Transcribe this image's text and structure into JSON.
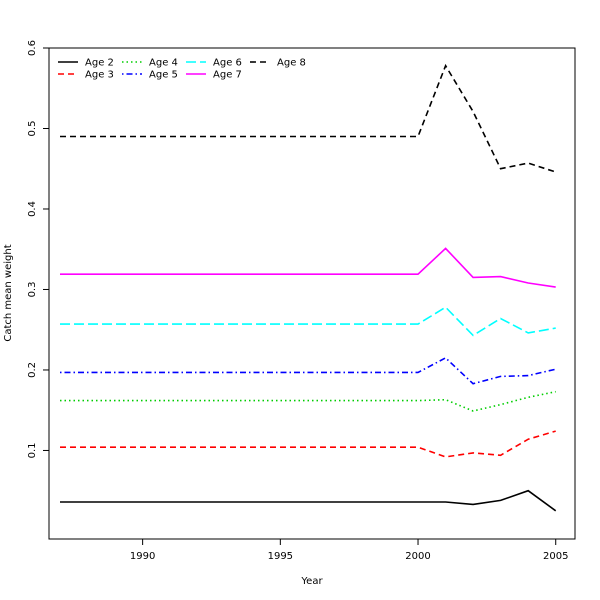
{
  "chart_data": {
    "type": "line",
    "title": "",
    "xlabel": "Year",
    "ylabel": "Catch mean weight",
    "xlim": [
      1986.6,
      2005.7
    ],
    "ylim": [
      -0.01,
      0.6
    ],
    "xticks": [
      1990,
      1995,
      2000,
      2005
    ],
    "yticks": [
      0.1,
      0.2,
      0.3,
      0.4,
      0.5,
      0.6
    ],
    "legend_position": "top-left",
    "x": [
      1987,
      1988,
      1989,
      1990,
      1991,
      1992,
      1993,
      1994,
      1995,
      1996,
      1997,
      1998,
      1999,
      2000,
      2001,
      2002,
      2003,
      2004,
      2005
    ],
    "series": [
      {
        "name": "Age 2",
        "color": "#000000",
        "dash": "solid",
        "values": [
          0.036,
          0.036,
          0.036,
          0.036,
          0.036,
          0.036,
          0.036,
          0.036,
          0.036,
          0.036,
          0.036,
          0.036,
          0.036,
          0.036,
          0.036,
          0.033,
          0.038,
          0.05,
          0.025
        ]
      },
      {
        "name": "Age 3",
        "color": "#ff0000",
        "dash": "dashed",
        "values": [
          0.104,
          0.104,
          0.104,
          0.104,
          0.104,
          0.104,
          0.104,
          0.104,
          0.104,
          0.104,
          0.104,
          0.104,
          0.104,
          0.104,
          0.092,
          0.097,
          0.094,
          0.114,
          0.124
        ]
      },
      {
        "name": "Age 4",
        "color": "#00cd00",
        "dash": "dotted",
        "values": [
          0.162,
          0.162,
          0.162,
          0.162,
          0.162,
          0.162,
          0.162,
          0.162,
          0.162,
          0.162,
          0.162,
          0.162,
          0.162,
          0.162,
          0.163,
          0.149,
          0.157,
          0.166,
          0.173
        ]
      },
      {
        "name": "Age 5",
        "color": "#0000ff",
        "dash": "dotdash",
        "values": [
          0.197,
          0.197,
          0.197,
          0.197,
          0.197,
          0.197,
          0.197,
          0.197,
          0.197,
          0.197,
          0.197,
          0.197,
          0.197,
          0.197,
          0.215,
          0.183,
          0.192,
          0.193,
          0.201
        ]
      },
      {
        "name": "Age 6",
        "color": "#00ffff",
        "dash": "longdash",
        "values": [
          0.257,
          0.257,
          0.257,
          0.257,
          0.257,
          0.257,
          0.257,
          0.257,
          0.257,
          0.257,
          0.257,
          0.257,
          0.257,
          0.257,
          0.278,
          0.243,
          0.264,
          0.246,
          0.252
        ]
      },
      {
        "name": "Age 7",
        "color": "#ff00ff",
        "dash": "solid",
        "values": [
          0.319,
          0.319,
          0.319,
          0.319,
          0.319,
          0.319,
          0.319,
          0.319,
          0.319,
          0.319,
          0.319,
          0.319,
          0.319,
          0.319,
          0.351,
          0.315,
          0.316,
          0.308,
          0.303
        ]
      },
      {
        "name": "Age 8",
        "color": "#000000",
        "dash": "dashed",
        "values": [
          0.49,
          0.49,
          0.49,
          0.49,
          0.49,
          0.49,
          0.49,
          0.49,
          0.49,
          0.49,
          0.49,
          0.49,
          0.49,
          0.49,
          0.578,
          0.521,
          0.45,
          0.457,
          0.446
        ]
      }
    ]
  }
}
